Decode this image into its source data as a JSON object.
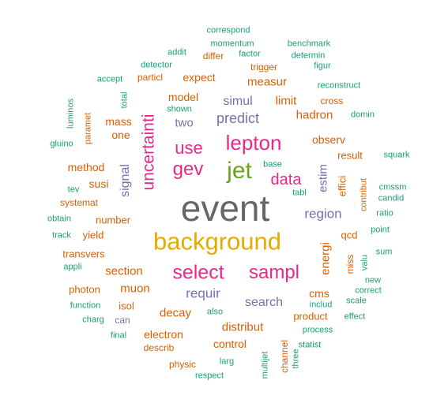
{
  "colors": {
    "gray": "#666666",
    "gold": "#E6AB02",
    "magenta": "#E7298A",
    "green": "#66A61E",
    "purple": "#7570B3",
    "orange": "#D95F02",
    "teal": "#1B9E77"
  },
  "words": [
    {
      "text": "event",
      "color": "gray",
      "vertical": false
    },
    {
      "text": "background",
      "color": "gold",
      "vertical": false
    },
    {
      "text": "lepton",
      "color": "magenta",
      "vertical": false
    },
    {
      "text": "jet",
      "color": "green",
      "vertical": false
    },
    {
      "text": "select",
      "color": "magenta",
      "vertical": false
    },
    {
      "text": "sampl",
      "color": "magenta",
      "vertical": false
    },
    {
      "text": "gev",
      "color": "magenta",
      "vertical": false
    },
    {
      "text": "use",
      "color": "magenta",
      "vertical": false
    },
    {
      "text": "data",
      "color": "magenta",
      "vertical": false
    },
    {
      "text": "uncertainti",
      "color": "magenta",
      "vertical": true
    },
    {
      "text": "predict",
      "color": "purple",
      "vertical": false
    },
    {
      "text": "region",
      "color": "purple",
      "vertical": false
    },
    {
      "text": "requir",
      "color": "purple",
      "vertical": false
    },
    {
      "text": "search",
      "color": "purple",
      "vertical": false
    },
    {
      "text": "simul",
      "color": "purple",
      "vertical": false
    },
    {
      "text": "two",
      "color": "purple",
      "vertical": false
    },
    {
      "text": "signal",
      "color": "purple",
      "vertical": true
    },
    {
      "text": "estim",
      "color": "purple",
      "vertical": true
    },
    {
      "text": "measur",
      "color": "orange",
      "vertical": false
    },
    {
      "text": "limit",
      "color": "orange",
      "vertical": false
    },
    {
      "text": "hadron",
      "color": "orange",
      "vertical": false
    },
    {
      "text": "observ",
      "color": "orange",
      "vertical": false
    },
    {
      "text": "model",
      "color": "orange",
      "vertical": false
    },
    {
      "text": "mass",
      "color": "orange",
      "vertical": false
    },
    {
      "text": "one",
      "color": "orange",
      "vertical": false
    },
    {
      "text": "method",
      "color": "orange",
      "vertical": false
    },
    {
      "text": "susi",
      "color": "orange",
      "vertical": false
    },
    {
      "text": "section",
      "color": "orange",
      "vertical": false
    },
    {
      "text": "muon",
      "color": "orange",
      "vertical": false
    },
    {
      "text": "decay",
      "color": "orange",
      "vertical": false
    },
    {
      "text": "distribut",
      "color": "orange",
      "vertical": false
    },
    {
      "text": "electron",
      "color": "orange",
      "vertical": false
    },
    {
      "text": "control",
      "color": "orange",
      "vertical": false
    },
    {
      "text": "cms",
      "color": "orange",
      "vertical": false
    },
    {
      "text": "result",
      "color": "orange",
      "vertical": false
    },
    {
      "text": "qcd",
      "color": "orange",
      "vertical": false
    },
    {
      "text": "expect",
      "color": "orange",
      "vertical": false
    },
    {
      "text": "number",
      "color": "orange",
      "vertical": false
    },
    {
      "text": "yield",
      "color": "orange",
      "vertical": false
    },
    {
      "text": "transvers",
      "color": "orange",
      "vertical": false
    },
    {
      "text": "photon",
      "color": "orange",
      "vertical": false
    },
    {
      "text": "isol",
      "color": "orange",
      "vertical": false
    },
    {
      "text": "product",
      "color": "orange",
      "vertical": false
    },
    {
      "text": "systemat",
      "color": "orange",
      "vertical": false
    },
    {
      "text": "particl",
      "color": "orange",
      "vertical": false
    },
    {
      "text": "differ",
      "color": "orange",
      "vertical": false
    },
    {
      "text": "trigger",
      "color": "orange",
      "vertical": false
    },
    {
      "text": "cross",
      "color": "orange",
      "vertical": false
    },
    {
      "text": "describ",
      "color": "orange",
      "vertical": false
    },
    {
      "text": "physic",
      "color": "orange",
      "vertical": false
    },
    {
      "text": "can",
      "color": "purple",
      "vertical": false
    },
    {
      "text": "energi",
      "color": "orange",
      "vertical": true
    },
    {
      "text": "effici",
      "color": "orange",
      "vertical": true
    },
    {
      "text": "miss",
      "color": "orange",
      "vertical": true
    },
    {
      "text": "contribut",
      "color": "orange",
      "vertical": true
    },
    {
      "text": "paramet",
      "color": "orange",
      "vertical": true
    },
    {
      "text": "channel",
      "color": "orange",
      "vertical": true
    },
    {
      "text": "correspond",
      "color": "teal",
      "vertical": false
    },
    {
      "text": "momentum",
      "color": "teal",
      "vertical": false
    },
    {
      "text": "benchmark",
      "color": "teal",
      "vertical": false
    },
    {
      "text": "addit",
      "color": "teal",
      "vertical": false
    },
    {
      "text": "factor",
      "color": "teal",
      "vertical": false
    },
    {
      "text": "determin",
      "color": "teal",
      "vertical": false
    },
    {
      "text": "detector",
      "color": "teal",
      "vertical": false
    },
    {
      "text": "figur",
      "color": "teal",
      "vertical": false
    },
    {
      "text": "accept",
      "color": "teal",
      "vertical": false
    },
    {
      "text": "reconstruct",
      "color": "teal",
      "vertical": false
    },
    {
      "text": "shown",
      "color": "teal",
      "vertical": false
    },
    {
      "text": "domin",
      "color": "teal",
      "vertical": false
    },
    {
      "text": "gluino",
      "color": "teal",
      "vertical": false
    },
    {
      "text": "base",
      "color": "teal",
      "vertical": false
    },
    {
      "text": "squark",
      "color": "teal",
      "vertical": false
    },
    {
      "text": "tev",
      "color": "teal",
      "vertical": false
    },
    {
      "text": "tabl",
      "color": "teal",
      "vertical": false
    },
    {
      "text": "cmssm",
      "color": "teal",
      "vertical": false
    },
    {
      "text": "candid",
      "color": "teal",
      "vertical": false
    },
    {
      "text": "obtain",
      "color": "teal",
      "vertical": false
    },
    {
      "text": "ratio",
      "color": "teal",
      "vertical": false
    },
    {
      "text": "track",
      "color": "teal",
      "vertical": false
    },
    {
      "text": "point",
      "color": "teal",
      "vertical": false
    },
    {
      "text": "appli",
      "color": "teal",
      "vertical": false
    },
    {
      "text": "sum",
      "color": "teal",
      "vertical": false
    },
    {
      "text": "new",
      "color": "teal",
      "vertical": false
    },
    {
      "text": "correct",
      "color": "teal",
      "vertical": false
    },
    {
      "text": "scale",
      "color": "teal",
      "vertical": false
    },
    {
      "text": "includ",
      "color": "teal",
      "vertical": false
    },
    {
      "text": "function",
      "color": "teal",
      "vertical": false
    },
    {
      "text": "charg",
      "color": "teal",
      "vertical": false
    },
    {
      "text": "also",
      "color": "teal",
      "vertical": false
    },
    {
      "text": "effect",
      "color": "teal",
      "vertical": false
    },
    {
      "text": "process",
      "color": "teal",
      "vertical": false
    },
    {
      "text": "final",
      "color": "teal",
      "vertical": false
    },
    {
      "text": "statist",
      "color": "teal",
      "vertical": false
    },
    {
      "text": "larg",
      "color": "teal",
      "vertical": false
    },
    {
      "text": "respect",
      "color": "teal",
      "vertical": false
    },
    {
      "text": "luminos",
      "color": "teal",
      "vertical": true
    },
    {
      "text": "total",
      "color": "teal",
      "vertical": true
    },
    {
      "text": "valu",
      "color": "teal",
      "vertical": true
    },
    {
      "text": "multijet",
      "color": "teal",
      "vertical": true
    },
    {
      "text": "three",
      "color": "teal",
      "vertical": true
    }
  ]
}
